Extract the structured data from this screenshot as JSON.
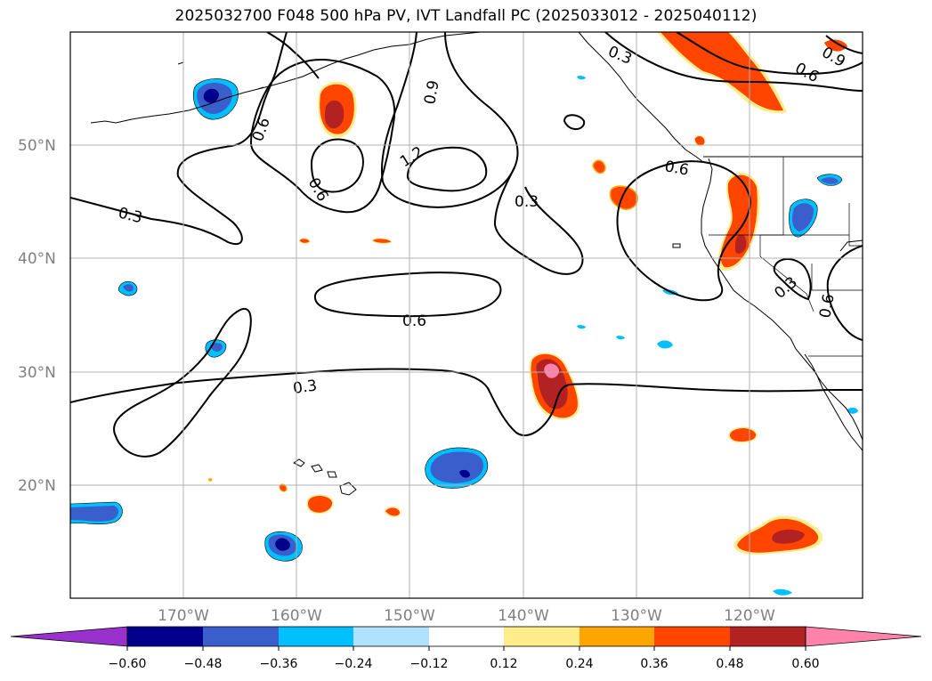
{
  "title": "2025032700 F048 500 hPa PV, IVT Landfall PC (2025033012 - 2025040112)",
  "map": {
    "lat_labels": [
      "50°N",
      "40°N",
      "30°N",
      "20°N"
    ],
    "lon_labels": [
      "170°W",
      "160°W",
      "150°W",
      "140°W",
      "130°W",
      "120°W"
    ],
    "grid": true,
    "extent": {
      "lon_min": -180,
      "lon_max": -110,
      "lat_min": 10,
      "lat_max": 60
    }
  },
  "contour_labels": [
    "0.3",
    "0.6",
    "0.9",
    "1.2"
  ],
  "colorbar": {
    "ticks": [
      "−0.60",
      "−0.48",
      "−0.36",
      "−0.24",
      "−0.12",
      "0.12",
      "0.24",
      "0.36",
      "0.48",
      "0.60"
    ],
    "colors": {
      "under": "#9932cc",
      "b1": "#00008b",
      "b2": "#3a5fcd",
      "b3": "#00bfff",
      "b4": "#b0e2ff",
      "mid": "#ffffff",
      "r1": "#ffec8b",
      "r2": "#ffa500",
      "r3": "#ff4500",
      "r4": "#b22222",
      "over": "#ff82ab"
    }
  }
}
